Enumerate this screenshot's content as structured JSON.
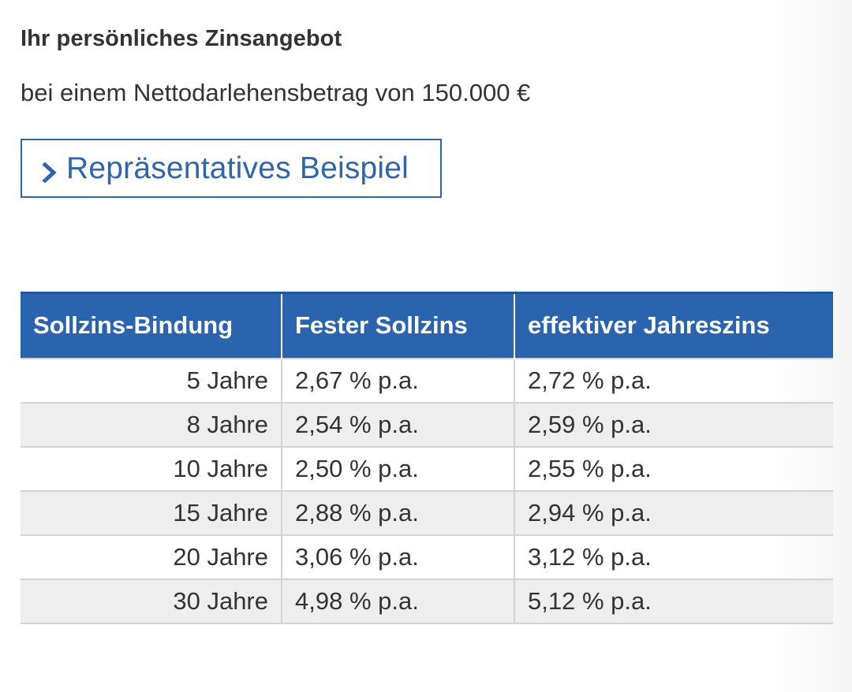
{
  "header": {
    "title": "Ihr persönliches Zinsangebot",
    "subtitle": "bei einem Nettodarlehensbetrag von 150.000 €"
  },
  "example_button": {
    "label": "Repräsentatives Beispiel",
    "icon": "chevron-right-icon"
  },
  "table": {
    "columns": [
      "Sollzins-Bindung",
      "Fester Sollzins",
      "effektiver Jahreszins"
    ],
    "rows": [
      {
        "term": "5 Jahre",
        "fixed_rate": "2,67 % p.a.",
        "effective_rate": "2,72 % p.a."
      },
      {
        "term": "8 Jahre",
        "fixed_rate": "2,54 % p.a.",
        "effective_rate": "2,59 % p.a."
      },
      {
        "term": "10 Jahre",
        "fixed_rate": "2,50 % p.a.",
        "effective_rate": "2,55 % p.a."
      },
      {
        "term": "15 Jahre",
        "fixed_rate": "2,88 % p.a.",
        "effective_rate": "2,94 % p.a."
      },
      {
        "term": "20 Jahre",
        "fixed_rate": "3,06 % p.a.",
        "effective_rate": "3,12 % p.a."
      },
      {
        "term": "30 Jahre",
        "fixed_rate": "4,98 % p.a.",
        "effective_rate": "5,12 % p.a."
      }
    ]
  },
  "colors": {
    "accent": "#2f65ad",
    "header_bg": "#2a63ae",
    "text": "#333333",
    "row_alt_bg": "#eeeeee",
    "grid": "#d3d3d3"
  }
}
